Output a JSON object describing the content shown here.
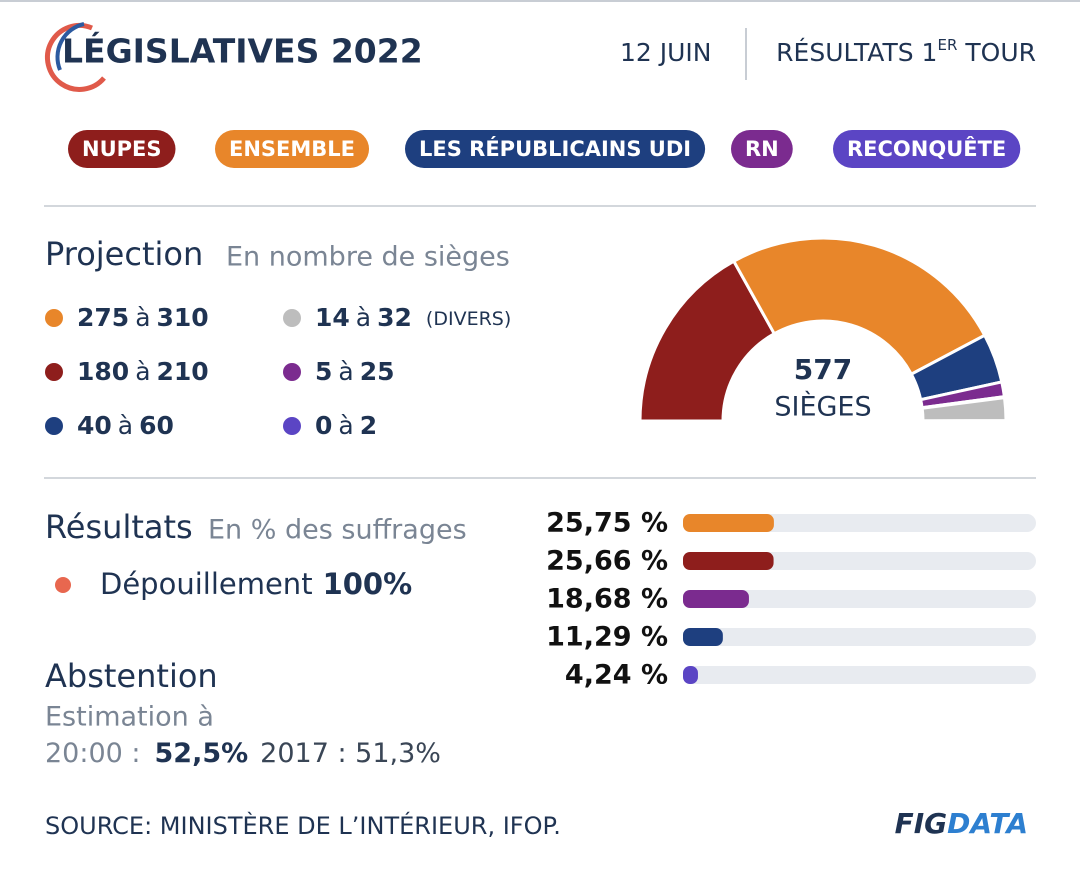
{
  "header": {
    "title": "LÉGISLATIVES 2022",
    "date": "12 JUIN",
    "round": "RÉSULTATS 1",
    "round_sup": "ER",
    "round_end": "TOUR"
  },
  "projection": {
    "title": "Projection",
    "subtitle": "En nombre de sièges",
    "range_word": "à"
  },
  "chart_data": [
    {
      "type": "half-donut",
      "total": 577,
      "total_label": "SIÈGES",
      "series": [
        {
          "name": "NUPES",
          "color": "#8e1e1c",
          "low": 180,
          "high": 210
        },
        {
          "name": "ENSEMBLE",
          "color": "#e8862a",
          "low": 275,
          "high": 310
        },
        {
          "name": "LES RÉPUBLICAINS UDI",
          "color": "#1e3f7f",
          "low": 40,
          "high": 60
        },
        {
          "name": "RN",
          "color": "#7b2b8f",
          "low": 5,
          "high": 25
        },
        {
          "name": "RECONQUÊTE",
          "color": "#5b45c4",
          "low": 0,
          "high": 2
        },
        {
          "name": "(DIVERS)",
          "color": "#bdbdbd",
          "low": 14,
          "high": 32
        }
      ]
    },
    {
      "type": "bar",
      "orientation": "horizontal",
      "xlim": [
        0,
        100
      ],
      "values": [
        25.75,
        25.66,
        18.68,
        11.29,
        4.24
      ],
      "value_labels": [
        "25,75 %",
        "25,66 %",
        "18,68 %",
        "11,29 %",
        "4,24 %"
      ],
      "colors": [
        "#e8862a",
        "#8e1e1c",
        "#7b2b8f",
        "#1e3f7f",
        "#5b45c4"
      ]
    }
  ],
  "results": {
    "title": "Résultats",
    "subtitle": "En % des suffrages",
    "count_label": "Dépouillement",
    "count_value": "100%"
  },
  "abstention": {
    "title": "Abstention",
    "line1": "Estimation à",
    "time": "20:00 :",
    "value": "52,5%",
    "previous": "2017 : 51,3%"
  },
  "source": "SOURCE: MINISTÈRE DE L’INTÉRIEUR, IFOP.",
  "logo": {
    "part1": "FIG",
    "part2": "DATA"
  }
}
